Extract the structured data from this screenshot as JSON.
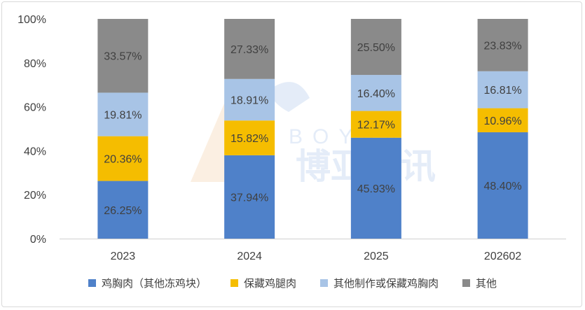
{
  "chart_data": {
    "type": "bar",
    "stacked": true,
    "categories": [
      "2023",
      "2024",
      "2025",
      "202602"
    ],
    "series": [
      {
        "name": "鸡胸肉（其他冻鸡块）",
        "color": "#4f81c9",
        "values": [
          26.25,
          37.94,
          45.93,
          48.4
        ],
        "labels": [
          "26.25%",
          "37.94%",
          "45.93%",
          "48.40%"
        ]
      },
      {
        "name": "保藏鸡腿肉",
        "color": "#f5bd00",
        "values": [
          20.36,
          15.82,
          12.17,
          10.96
        ],
        "labels": [
          "20.36%",
          "15.82%",
          "12.17%",
          "10.96%"
        ]
      },
      {
        "name": "其他制作或保藏鸡胸肉",
        "color": "#a8c4e6",
        "values": [
          19.81,
          18.91,
          16.4,
          16.81
        ],
        "labels": [
          "19.81%",
          "18.91%",
          "16.40%",
          "16.81%"
        ]
      },
      {
        "name": "其他",
        "color": "#8a8a8a",
        "values": [
          33.57,
          27.33,
          25.5,
          23.83
        ],
        "labels": [
          "33.57%",
          "27.33%",
          "25.50%",
          "23.83%"
        ]
      }
    ],
    "y_ticks": [
      "0%",
      "20%",
      "40%",
      "60%",
      "80%",
      "100%"
    ],
    "ylim": [
      0,
      100
    ],
    "grid": false,
    "legend_position": "bottom"
  },
  "watermark": {
    "text": "博亚和讯",
    "latin": "BOYAR"
  }
}
